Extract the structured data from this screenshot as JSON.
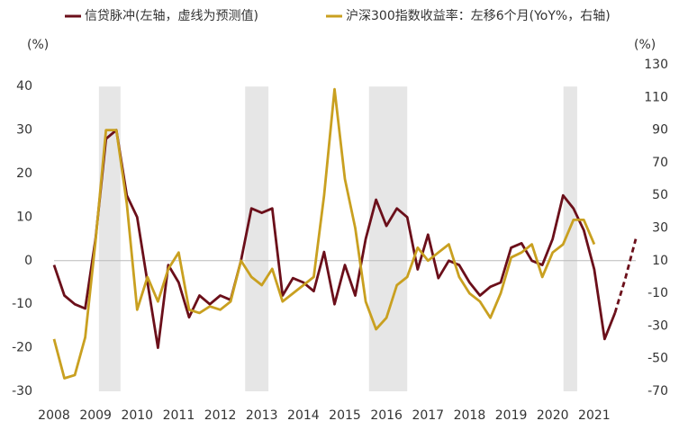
{
  "chart_data": {
    "type": "line",
    "y_label": "(%)",
    "y2_label": "(%)",
    "xlim": [
      2008,
      2022
    ],
    "xticks": [
      2008,
      2009,
      2010,
      2011,
      2012,
      2013,
      2014,
      2015,
      2016,
      2017,
      2018,
      2019,
      2020,
      2021
    ],
    "ylim": [
      -30,
      45
    ],
    "yticks": [
      40,
      30,
      20,
      10,
      0,
      -10,
      -20,
      -30
    ],
    "y2lim": [
      -70,
      130
    ],
    "y2ticks": [
      130,
      110,
      90,
      70,
      50,
      30,
      10,
      -10,
      -30,
      -50,
      -70
    ],
    "shaded_spans": [
      [
        2009.08,
        2009.6
      ],
      [
        2012.6,
        2013.16
      ],
      [
        2015.58,
        2016.5
      ],
      [
        2020.26,
        2020.59
      ]
    ],
    "shade_color": "#e6e6e6",
    "x": [
      2008,
      2008.25,
      2008.5,
      2008.75,
      2009,
      2009.25,
      2009.5,
      2009.75,
      2010,
      2010.25,
      2010.5,
      2010.75,
      2011,
      2011.25,
      2011.5,
      2011.75,
      2012,
      2012.25,
      2012.5,
      2012.75,
      2013,
      2013.25,
      2013.5,
      2013.75,
      2014,
      2014.25,
      2014.5,
      2014.75,
      2015,
      2015.25,
      2015.5,
      2015.75,
      2016,
      2016.25,
      2016.5,
      2016.75,
      2017,
      2017.25,
      2017.5,
      2017.75,
      2018,
      2018.25,
      2018.5,
      2018.75,
      2019,
      2019.25,
      2019.5,
      2019.75,
      2020,
      2020.25,
      2020.5,
      2020.75,
      2021,
      2021.25,
      2021.5,
      2021.75,
      2022
    ],
    "series": [
      {
        "name": "信贷脉冲(左轴，虚线为预测值)",
        "color": "#6b0f1a",
        "axis": "y",
        "values": [
          -1,
          -8,
          -10,
          -11,
          5,
          28,
          30,
          15,
          10,
          -5,
          -20,
          -1,
          -5,
          -13,
          -8,
          -10,
          -8,
          -9,
          0,
          12,
          11,
          12,
          -8,
          -4,
          -5,
          -7,
          2,
          -10,
          -1,
          -8,
          5,
          14,
          8,
          12,
          10,
          -2,
          6,
          -4,
          0,
          -1,
          -5,
          -8,
          -6,
          -5,
          3,
          4,
          0,
          -1,
          5,
          15,
          12,
          7,
          -2,
          -18,
          -12,
          null,
          null
        ],
        "forecast": [
          null,
          null,
          null,
          null,
          null,
          null,
          null,
          null,
          null,
          null,
          null,
          null,
          null,
          null,
          null,
          null,
          null,
          null,
          null,
          null,
          null,
          null,
          null,
          null,
          null,
          null,
          null,
          null,
          null,
          null,
          null,
          null,
          null,
          null,
          null,
          null,
          null,
          null,
          null,
          null,
          null,
          null,
          null,
          null,
          null,
          null,
          null,
          null,
          null,
          null,
          null,
          null,
          null,
          null,
          -12,
          -4,
          5
        ]
      },
      {
        "name": "沪深300指数收益率：左移6个月(YoY%，右轴)",
        "color": "#c9a020",
        "axis": "y2",
        "values": [
          -38,
          -62,
          -60,
          -37,
          22,
          90,
          90,
          45,
          -20,
          0,
          -15,
          5,
          15,
          -20,
          -22,
          -18,
          -20,
          -15,
          10,
          0,
          -5,
          5,
          -15,
          -10,
          -5,
          0,
          50,
          115,
          60,
          30,
          -15,
          -32,
          -25,
          -5,
          0,
          18,
          10,
          15,
          20,
          0,
          -10,
          -15,
          -25,
          -10,
          12,
          15,
          20,
          0,
          15,
          20,
          35,
          35,
          20,
          null,
          null,
          null,
          null
        ]
      }
    ]
  }
}
